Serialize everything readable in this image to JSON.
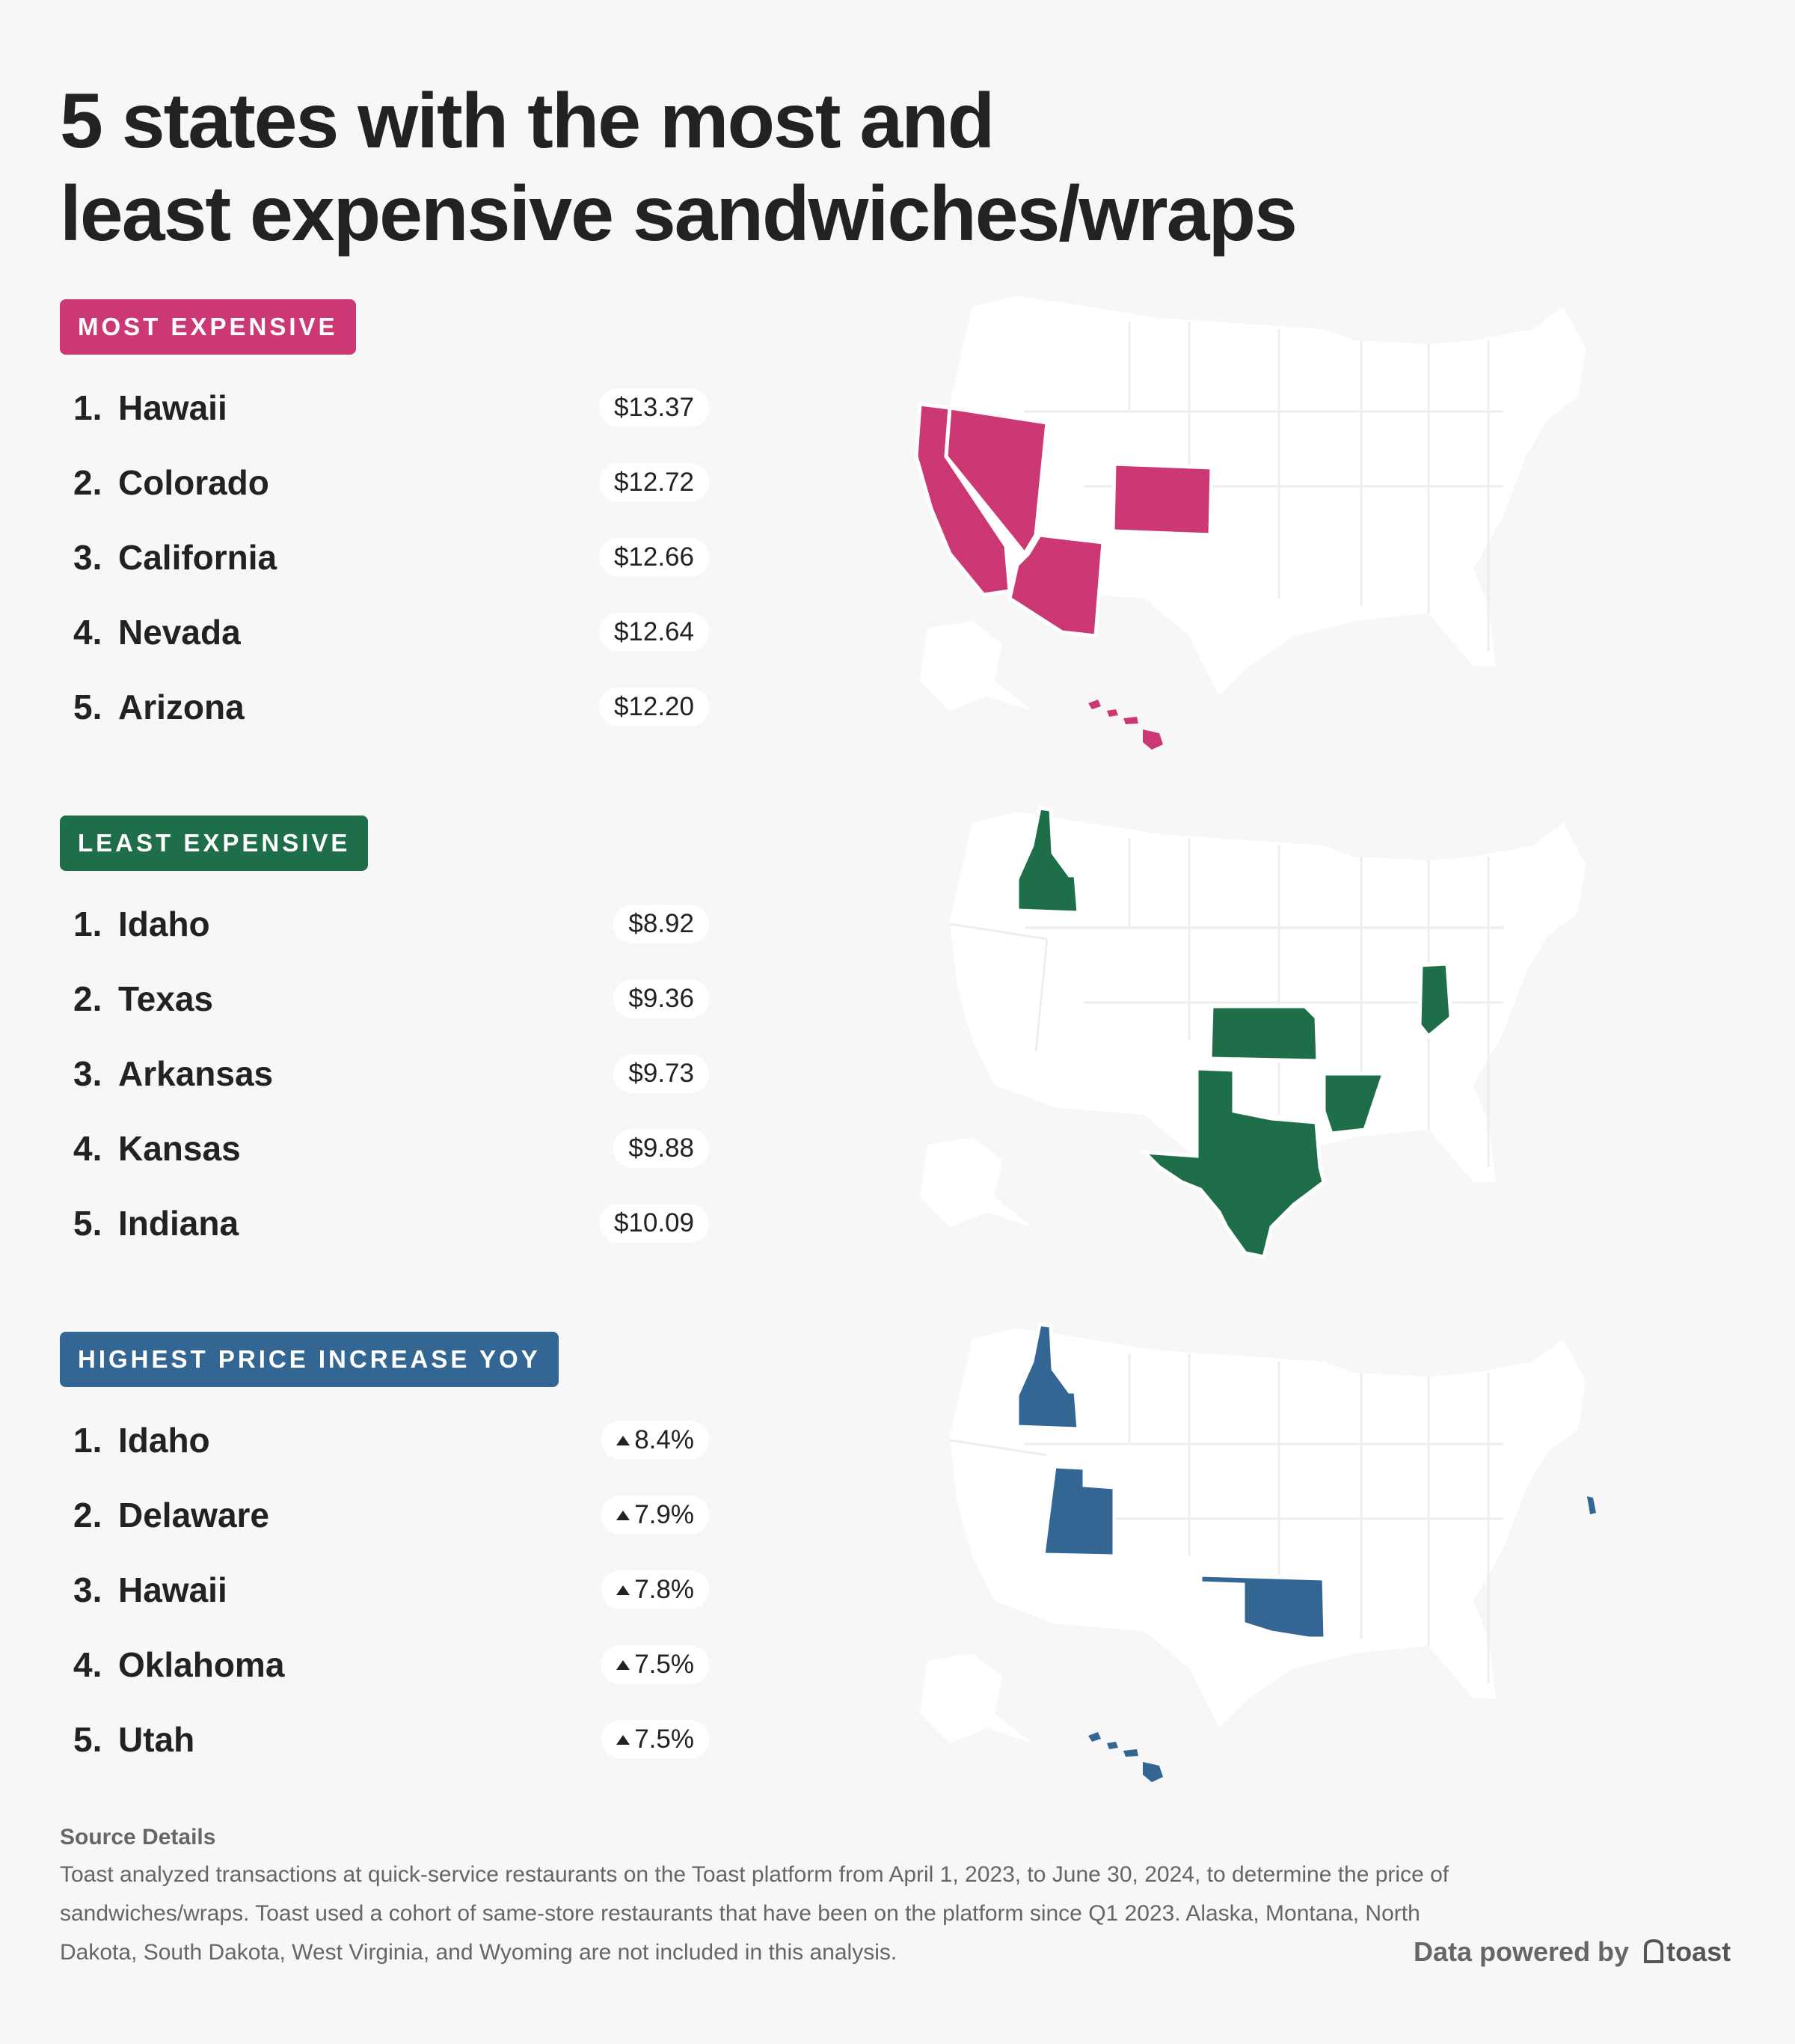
{
  "title": {
    "line1": "5 states with the most and",
    "line2": "least expensive sandwiches/wraps"
  },
  "colors": {
    "most": "#cc3873",
    "least": "#1f6e4a",
    "increase": "#336693"
  },
  "most_expensive": {
    "label": "MOST EXPENSIVE",
    "items": [
      {
        "rank": "1.",
        "state": "Hawaii",
        "value": "$13.37"
      },
      {
        "rank": "2.",
        "state": "Colorado",
        "value": "$12.72"
      },
      {
        "rank": "3.",
        "state": "California",
        "value": "$12.66"
      },
      {
        "rank": "4.",
        "state": "Nevada",
        "value": "$12.64"
      },
      {
        "rank": "5.",
        "state": "Arizona",
        "value": "$12.20"
      }
    ]
  },
  "least_expensive": {
    "label": "LEAST EXPENSIVE",
    "items": [
      {
        "rank": "1.",
        "state": "Idaho",
        "value": "$8.92"
      },
      {
        "rank": "2.",
        "state": "Texas",
        "value": "$9.36"
      },
      {
        "rank": "3.",
        "state": "Arkansas",
        "value": "$9.73"
      },
      {
        "rank": "4.",
        "state": "Kansas",
        "value": "$9.88"
      },
      {
        "rank": "5.",
        "state": "Indiana",
        "value": "$10.09"
      }
    ]
  },
  "highest_increase": {
    "label": "HIGHEST PRICE INCREASE YOY",
    "items": [
      {
        "rank": "1.",
        "state": "Idaho",
        "value": "8.4%"
      },
      {
        "rank": "2.",
        "state": "Delaware",
        "value": "7.9%"
      },
      {
        "rank": "3.",
        "state": "Hawaii",
        "value": "7.8%"
      },
      {
        "rank": "4.",
        "state": "Oklahoma",
        "value": "7.5%"
      },
      {
        "rank": "5.",
        "state": "Utah",
        "value": "7.5%"
      }
    ]
  },
  "footer": {
    "heading": "Source Details",
    "body": "Toast analyzed transactions at quick-service restaurants on the Toast platform from April 1, 2023, to June 30, 2024, to determine the price of sandwiches/wraps. Toast used a cohort of same-store restaurants that have been on the platform since Q1 2023. Alaska, Montana, North Dakota, South Dakota, West Virginia, and Wyoming are not included in this analysis.",
    "powered_by": "Data powered by",
    "brand": "toast"
  }
}
